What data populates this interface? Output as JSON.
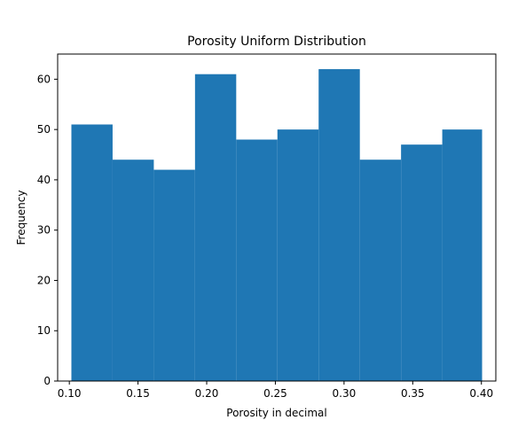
{
  "chart_data": {
    "type": "bar",
    "title": "Porosity Uniform Distribution",
    "xlabel": "Porosity in decimal",
    "ylabel": "Frequency",
    "xlim": [
      0.0915,
      0.4105
    ],
    "ylim": [
      0,
      65
    ],
    "xticks": [
      0.1,
      0.15,
      0.2,
      0.25,
      0.3,
      0.35,
      0.4
    ],
    "xtick_labels": [
      "0.10",
      "0.15",
      "0.20",
      "0.25",
      "0.30",
      "0.35",
      "0.40"
    ],
    "yticks": [
      0,
      10,
      20,
      30,
      40,
      50,
      60
    ],
    "ytick_labels": [
      "0",
      "10",
      "20",
      "30",
      "40",
      "50",
      "60"
    ],
    "bin_edges": [
      0.1015,
      0.1315,
      0.1615,
      0.1915,
      0.2215,
      0.2515,
      0.2815,
      0.3115,
      0.3415,
      0.3715,
      0.4005
    ],
    "values": [
      51,
      44,
      42,
      61,
      48,
      50,
      62,
      44,
      47,
      50
    ],
    "bar_color": "#1f77b4",
    "grid": false
  }
}
